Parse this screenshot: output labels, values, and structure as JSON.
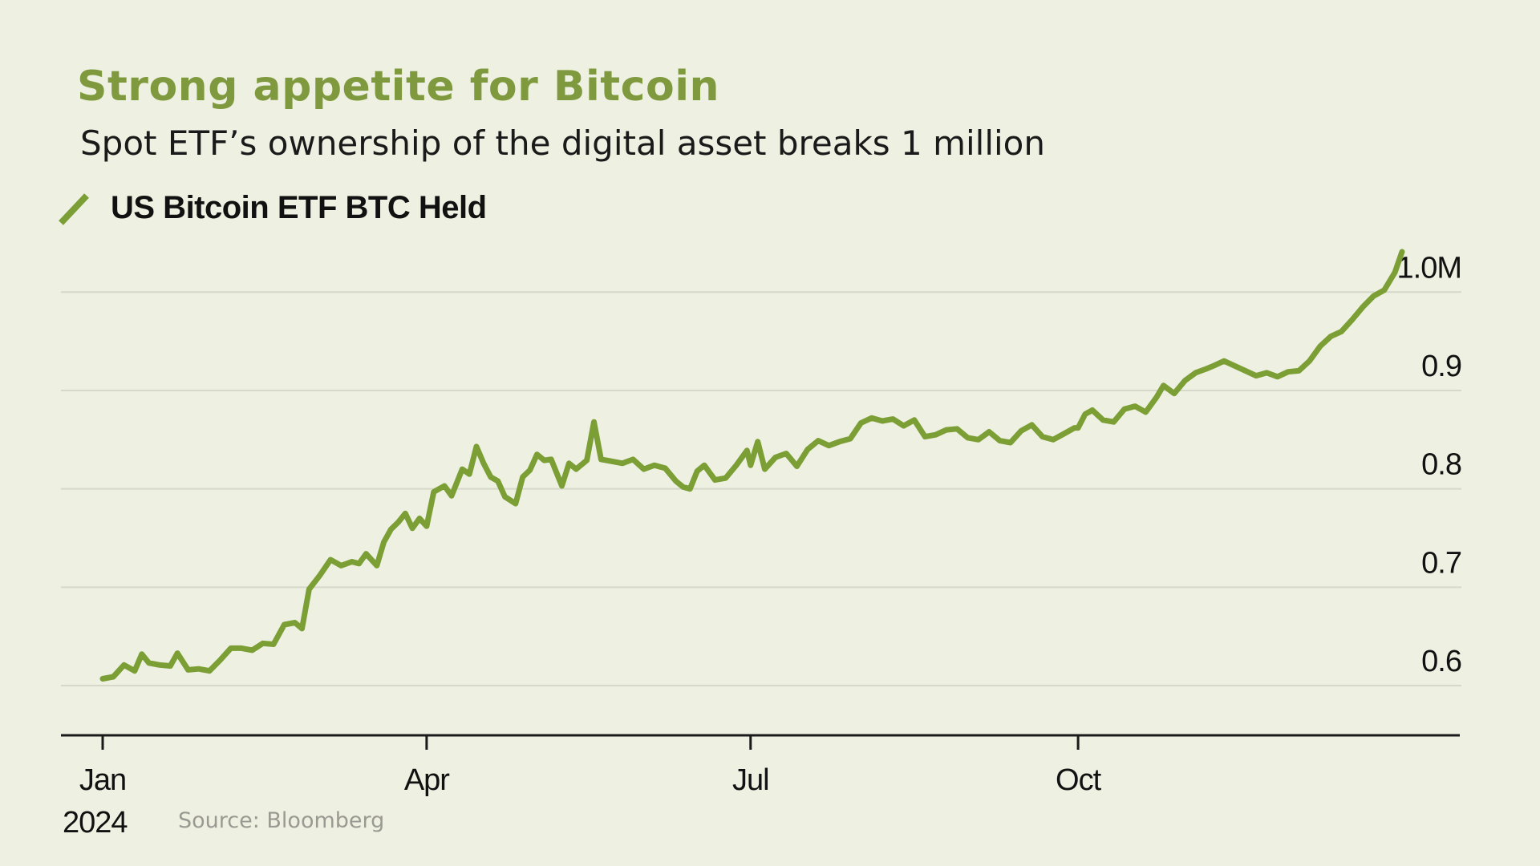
{
  "title": "Strong appetite for Bitcoin",
  "subtitle": "Spot ETF’s ownership of the digital asset breaks 1 million",
  "source": "Source: Bloomberg",
  "colors": {
    "line": "#7b9e35",
    "title": "#7f9a3e",
    "background": "#eef0e1",
    "grid": "#d6d8c9",
    "axis": "#1a1a1a"
  },
  "chart_data": {
    "type": "line",
    "title": "Strong appetite for Bitcoin",
    "subtitle": "Spot ETF’s ownership of the digital asset breaks 1 million",
    "xlabel": "",
    "ylabel": "",
    "x_range": [
      "2024-01-01",
      "2024-12-31"
    ],
    "ylim": [
      0.565,
      1.085
    ],
    "y_ticks": [
      0.6,
      0.7,
      0.8,
      0.9,
      1.0
    ],
    "y_tick_labels": [
      "0.6",
      "0.7",
      "0.8",
      "0.9",
      "1.0M"
    ],
    "x_ticks": [
      {
        "date": "2024-01-01",
        "label": "Jan"
      },
      {
        "date": "2024-04-01",
        "label": "Apr"
      },
      {
        "date": "2024-07-01",
        "label": "Jul"
      },
      {
        "date": "2024-10-01",
        "label": "Oct"
      }
    ],
    "x_year_label": "2024",
    "grid": true,
    "legend_position": "top-left",
    "series": [
      {
        "name": "US Bitcoin ETF BTC Held",
        "points": [
          [
            "2024-01-01",
            0.607
          ],
          [
            "2024-01-04",
            0.609
          ],
          [
            "2024-01-07",
            0.621
          ],
          [
            "2024-01-10",
            0.615
          ],
          [
            "2024-01-12",
            0.632
          ],
          [
            "2024-01-14",
            0.623
          ],
          [
            "2024-01-17",
            0.621
          ],
          [
            "2024-01-20",
            0.62
          ],
          [
            "2024-01-22",
            0.633
          ],
          [
            "2024-01-25",
            0.616
          ],
          [
            "2024-01-28",
            0.617
          ],
          [
            "2024-01-31",
            0.615
          ],
          [
            "2024-02-03",
            0.626
          ],
          [
            "2024-02-06",
            0.638
          ],
          [
            "2024-02-09",
            0.638
          ],
          [
            "2024-02-12",
            0.636
          ],
          [
            "2024-02-15",
            0.643
          ],
          [
            "2024-02-18",
            0.642
          ],
          [
            "2024-02-21",
            0.662
          ],
          [
            "2024-02-24",
            0.664
          ],
          [
            "2024-02-26",
            0.658
          ],
          [
            "2024-02-28",
            0.698
          ],
          [
            "2024-03-02",
            0.712
          ],
          [
            "2024-03-05",
            0.728
          ],
          [
            "2024-03-08",
            0.722
          ],
          [
            "2024-03-11",
            0.726
          ],
          [
            "2024-03-13",
            0.724
          ],
          [
            "2024-03-15",
            0.734
          ],
          [
            "2024-03-18",
            0.722
          ],
          [
            "2024-03-20",
            0.746
          ],
          [
            "2024-03-22",
            0.759
          ],
          [
            "2024-03-24",
            0.766
          ],
          [
            "2024-03-26",
            0.775
          ],
          [
            "2024-03-28",
            0.76
          ],
          [
            "2024-03-30",
            0.77
          ],
          [
            "2024-04-01",
            0.762
          ],
          [
            "2024-04-03",
            0.797
          ],
          [
            "2024-04-06",
            0.803
          ],
          [
            "2024-04-08",
            0.793
          ],
          [
            "2024-04-11",
            0.82
          ],
          [
            "2024-04-13",
            0.815
          ],
          [
            "2024-04-15",
            0.843
          ],
          [
            "2024-04-17",
            0.826
          ],
          [
            "2024-04-19",
            0.812
          ],
          [
            "2024-04-21",
            0.808
          ],
          [
            "2024-04-23",
            0.792
          ],
          [
            "2024-04-26",
            0.785
          ],
          [
            "2024-04-28",
            0.812
          ],
          [
            "2024-04-30",
            0.819
          ],
          [
            "2024-05-02",
            0.835
          ],
          [
            "2024-05-04",
            0.829
          ],
          [
            "2024-05-06",
            0.83
          ],
          [
            "2024-05-09",
            0.803
          ],
          [
            "2024-05-11",
            0.826
          ],
          [
            "2024-05-13",
            0.82
          ],
          [
            "2024-05-16",
            0.829
          ],
          [
            "2024-05-18",
            0.868
          ],
          [
            "2024-05-20",
            0.83
          ],
          [
            "2024-05-23",
            0.828
          ],
          [
            "2024-05-26",
            0.826
          ],
          [
            "2024-05-29",
            0.83
          ],
          [
            "2024-06-01",
            0.82
          ],
          [
            "2024-06-04",
            0.824
          ],
          [
            "2024-06-07",
            0.821
          ],
          [
            "2024-06-10",
            0.808
          ],
          [
            "2024-06-12",
            0.802
          ],
          [
            "2024-06-14",
            0.8
          ],
          [
            "2024-06-16",
            0.818
          ],
          [
            "2024-06-18",
            0.824
          ],
          [
            "2024-06-21",
            0.809
          ],
          [
            "2024-06-24",
            0.811
          ],
          [
            "2024-06-27",
            0.824
          ],
          [
            "2024-06-30",
            0.839
          ],
          [
            "2024-07-01",
            0.824
          ],
          [
            "2024-07-03",
            0.848
          ],
          [
            "2024-07-05",
            0.82
          ],
          [
            "2024-07-08",
            0.832
          ],
          [
            "2024-07-11",
            0.836
          ],
          [
            "2024-07-14",
            0.823
          ],
          [
            "2024-07-17",
            0.84
          ],
          [
            "2024-07-20",
            0.849
          ],
          [
            "2024-07-23",
            0.844
          ],
          [
            "2024-07-26",
            0.848
          ],
          [
            "2024-07-29",
            0.851
          ],
          [
            "2024-08-01",
            0.867
          ],
          [
            "2024-08-04",
            0.872
          ],
          [
            "2024-08-07",
            0.869
          ],
          [
            "2024-08-10",
            0.871
          ],
          [
            "2024-08-13",
            0.864
          ],
          [
            "2024-08-16",
            0.87
          ],
          [
            "2024-08-19",
            0.853
          ],
          [
            "2024-08-22",
            0.855
          ],
          [
            "2024-08-25",
            0.86
          ],
          [
            "2024-08-28",
            0.861
          ],
          [
            "2024-08-31",
            0.852
          ],
          [
            "2024-09-03",
            0.85
          ],
          [
            "2024-09-06",
            0.858
          ],
          [
            "2024-09-09",
            0.849
          ],
          [
            "2024-09-12",
            0.847
          ],
          [
            "2024-09-15",
            0.859
          ],
          [
            "2024-09-18",
            0.865
          ],
          [
            "2024-09-21",
            0.853
          ],
          [
            "2024-09-24",
            0.85
          ],
          [
            "2024-09-27",
            0.856
          ],
          [
            "2024-09-30",
            0.862
          ],
          [
            "2024-10-01",
            0.862
          ],
          [
            "2024-10-03",
            0.876
          ],
          [
            "2024-10-05",
            0.88
          ],
          [
            "2024-10-08",
            0.87
          ],
          [
            "2024-10-11",
            0.868
          ],
          [
            "2024-10-14",
            0.881
          ],
          [
            "2024-10-17",
            0.884
          ],
          [
            "2024-10-20",
            0.878
          ],
          [
            "2024-10-23",
            0.893
          ],
          [
            "2024-10-25",
            0.905
          ],
          [
            "2024-10-28",
            0.897
          ],
          [
            "2024-10-31",
            0.91
          ],
          [
            "2024-11-03",
            0.918
          ],
          [
            "2024-11-06",
            0.922
          ],
          [
            "2024-11-08",
            0.925
          ],
          [
            "2024-11-11",
            0.93
          ],
          [
            "2024-11-14",
            0.925
          ],
          [
            "2024-11-17",
            0.92
          ],
          [
            "2024-11-20",
            0.915
          ],
          [
            "2024-11-23",
            0.918
          ],
          [
            "2024-11-26",
            0.914
          ],
          [
            "2024-11-29",
            0.919
          ],
          [
            "2024-12-02",
            0.92
          ],
          [
            "2024-12-05",
            0.93
          ],
          [
            "2024-12-08",
            0.945
          ],
          [
            "2024-12-11",
            0.955
          ],
          [
            "2024-12-14",
            0.96
          ],
          [
            "2024-12-17",
            0.972
          ],
          [
            "2024-12-20",
            0.985
          ],
          [
            "2024-12-23",
            0.996
          ],
          [
            "2024-12-26",
            1.002
          ],
          [
            "2024-12-29",
            1.02
          ],
          [
            "2024-12-31",
            1.041
          ]
        ]
      }
    ]
  }
}
